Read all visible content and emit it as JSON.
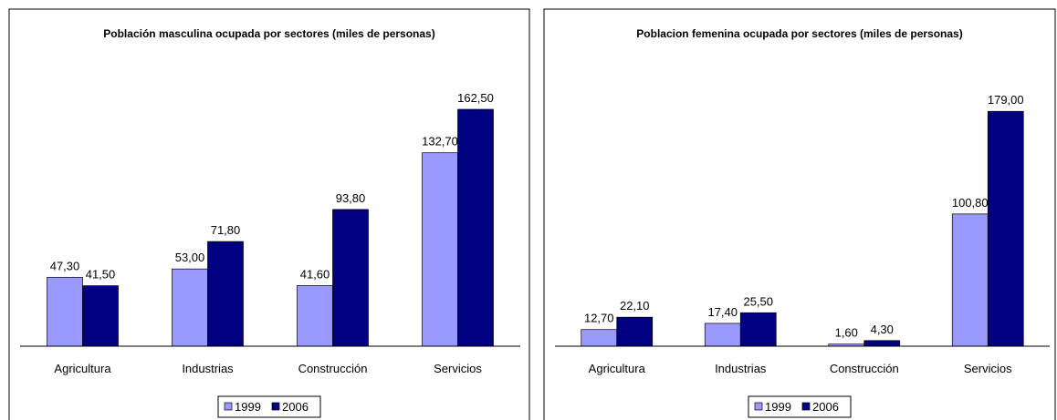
{
  "chart_data": [
    {
      "type": "bar",
      "title": "Población masculina ocupada por sectores  (miles de personas)",
      "categories": [
        "Agricultura",
        "Industrias",
        "Construcción",
        "Servicios"
      ],
      "series": [
        {
          "name": "1999",
          "color": "#9999ff",
          "values": [
            47.3,
            53.0,
            41.6,
            132.7
          ],
          "value_labels": [
            "47,30",
            "53,00",
            "41,60",
            "132,70"
          ]
        },
        {
          "name": "2006",
          "color": "#000080",
          "values": [
            41.5,
            71.8,
            93.8,
            162.5
          ],
          "value_labels": [
            "41,50",
            "71,80",
            "93,80",
            "162,50"
          ]
        }
      ],
      "ylim": [
        0,
        180
      ],
      "legend": "bottom"
    },
    {
      "type": "bar",
      "title": "Poblacion femenina ocupada por sectores (miles de personas)",
      "categories": [
        "Agricultura",
        "Industrias",
        "Construcción",
        "Servicios"
      ],
      "series": [
        {
          "name": "1999",
          "color": "#9999ff",
          "values": [
            12.7,
            17.4,
            1.6,
            100.8
          ],
          "value_labels": [
            "12,70",
            "17,40",
            "1,60",
            "100,80"
          ]
        },
        {
          "name": "2006",
          "color": "#000080",
          "values": [
            22.1,
            25.5,
            4.3,
            179.0
          ],
          "value_labels": [
            "22,10",
            "25,50",
            "4,30",
            "179,00"
          ]
        }
      ],
      "ylim": [
        0,
        200
      ],
      "legend": "bottom"
    }
  ]
}
